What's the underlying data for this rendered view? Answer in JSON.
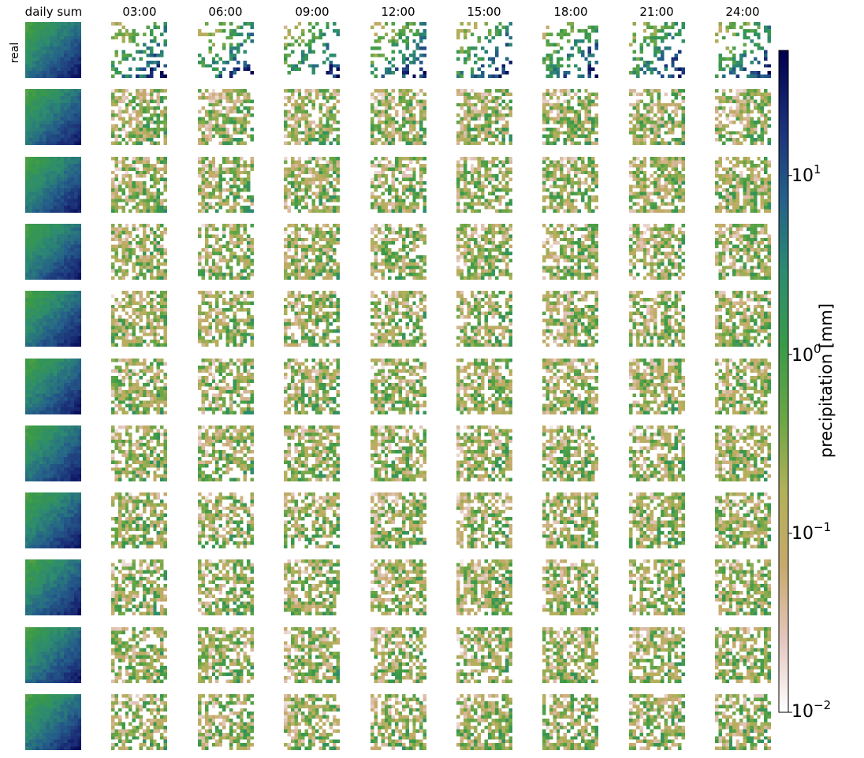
{
  "chart_data": {
    "type": "heatmap",
    "layout": "grid of maps",
    "rows": 11,
    "columns": 9,
    "column_titles": [
      "daily sum",
      "03:00",
      "06:00",
      "09:00",
      "12:00",
      "15:00",
      "18:00",
      "21:00",
      "24:00"
    ],
    "row_labels": [
      "real",
      "",
      "",
      "",
      "",
      "",
      "",
      "",
      "",
      "",
      ""
    ],
    "grid_cells_per_map": 16,
    "colorbar": {
      "label": "precipitation [mm]",
      "scale": "log",
      "range": [
        0.01,
        50
      ],
      "ticks": [
        0.01,
        0.1,
        1,
        10
      ],
      "tick_bases": [
        "10",
        "10",
        "10",
        "10"
      ],
      "tick_exponents": [
        "−2",
        "−1",
        "0",
        "1"
      ],
      "colormap": [
        "#ffffff",
        "#e3c6bd",
        "#c6a96b",
        "#b2b05a",
        "#6aa646",
        "#3a9a48",
        "#2d8b70",
        "#255f8a",
        "#1b2f78",
        "#00004d"
      ]
    },
    "description_of_values": {
      "daily_sum_panels": "increasing from ~1 mm in the upper-left to >10 mm in the lower-right",
      "hourly_panels": "patchy fields mostly 0.01 to 3 mm with dry (white) regions"
    }
  }
}
